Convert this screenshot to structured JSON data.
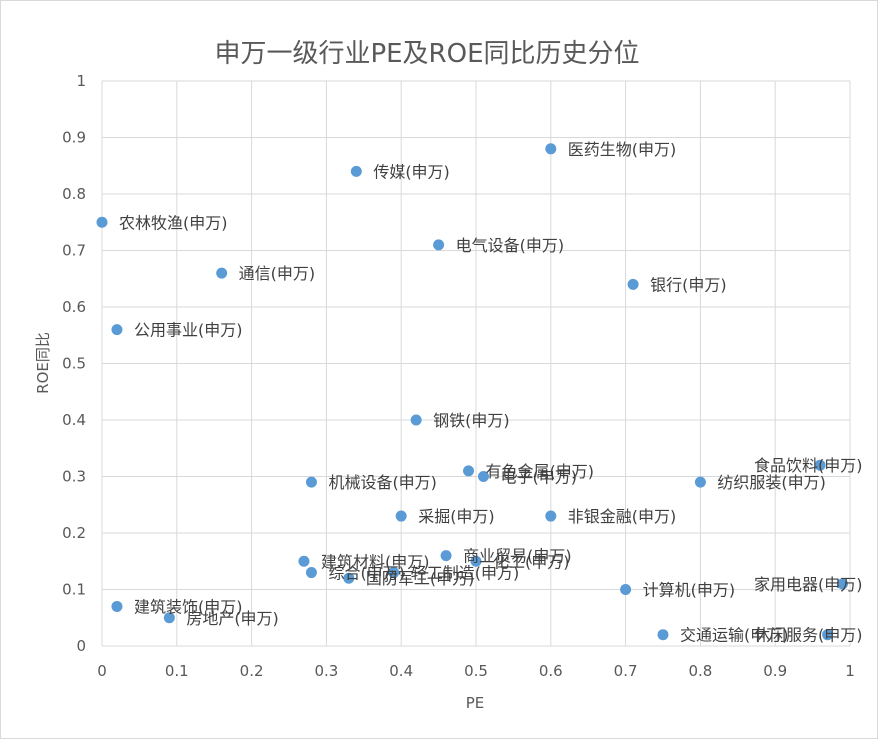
{
  "chart_data": {
    "type": "scatter",
    "title": "申万一级行业PE及ROE同比历史分位",
    "xlabel": "PE",
    "ylabel": "ROE同比",
    "xlim": [
      0,
      1
    ],
    "ylim": [
      0,
      1
    ],
    "x_ticks": [
      "0",
      "0.1",
      "0.2",
      "0.3",
      "0.4",
      "0.5",
      "0.6",
      "0.7",
      "0.8",
      "0.9",
      "1"
    ],
    "y_ticks": [
      "0",
      "0.1",
      "0.2",
      "0.3",
      "0.4",
      "0.5",
      "0.6",
      "0.7",
      "0.8",
      "0.9",
      "1"
    ],
    "grid": true,
    "legend": "none",
    "color": "#5b9bd5",
    "points": [
      {
        "label": "医药生物(申万)",
        "x": 0.6,
        "y": 0.88
      },
      {
        "label": "传媒(申万)",
        "x": 0.34,
        "y": 0.84
      },
      {
        "label": "农林牧渔(申万)",
        "x": 0.0,
        "y": 0.75
      },
      {
        "label": "电气设备(申万)",
        "x": 0.45,
        "y": 0.71
      },
      {
        "label": "通信(申万)",
        "x": 0.16,
        "y": 0.66
      },
      {
        "label": "银行(申万)",
        "x": 0.71,
        "y": 0.64
      },
      {
        "label": "公用事业(申万)",
        "x": 0.02,
        "y": 0.56
      },
      {
        "label": "钢铁(申万)",
        "x": 0.42,
        "y": 0.4
      },
      {
        "label": "食品饮料(申万)",
        "x": 0.96,
        "y": 0.32
      },
      {
        "label": "有色金属(申万)",
        "x": 0.49,
        "y": 0.31
      },
      {
        "label": "电子(申万)",
        "x": 0.51,
        "y": 0.3
      },
      {
        "label": "机械设备(申万)",
        "x": 0.28,
        "y": 0.29
      },
      {
        "label": "纺织服装(申万)",
        "x": 0.8,
        "y": 0.29
      },
      {
        "label": "采掘(申万)",
        "x": 0.4,
        "y": 0.23
      },
      {
        "label": "非银金融(申万)",
        "x": 0.6,
        "y": 0.23
      },
      {
        "label": "商业贸易(申万)",
        "x": 0.46,
        "y": 0.16
      },
      {
        "label": "建筑材料(申万)",
        "x": 0.27,
        "y": 0.15
      },
      {
        "label": "化工(申万)",
        "x": 0.5,
        "y": 0.15
      },
      {
        "label": "综合(申万)",
        "x": 0.28,
        "y": 0.13
      },
      {
        "label": "轻工制造(申万)",
        "x": 0.39,
        "y": 0.13
      },
      {
        "label": "国防军工(申万)",
        "x": 0.33,
        "y": 0.12
      },
      {
        "label": "计算机(申万)",
        "x": 0.7,
        "y": 0.1
      },
      {
        "label": "家用电器(申万)",
        "x": 0.99,
        "y": 0.11
      },
      {
        "label": "建筑装饰(申万)",
        "x": 0.02,
        "y": 0.07
      },
      {
        "label": "房地产(申万)",
        "x": 0.09,
        "y": 0.05
      },
      {
        "label": "交通运输(申万)",
        "x": 0.75,
        "y": 0.02
      },
      {
        "label": "休闲服务(申万)",
        "x": 0.97,
        "y": 0.02
      }
    ]
  }
}
